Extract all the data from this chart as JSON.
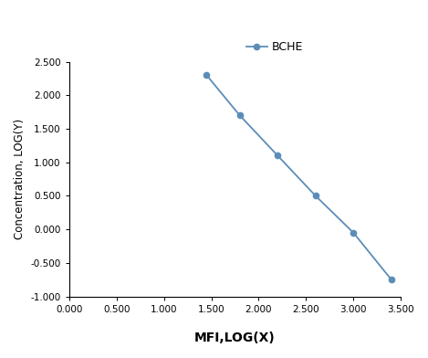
{
  "x": [
    1.45,
    1.8,
    2.2,
    2.6,
    3.0,
    3.4
  ],
  "y": [
    2.3,
    1.7,
    1.1,
    0.5,
    -0.05,
    -0.75
  ],
  "line_color": "#5B8DB8",
  "marker": "o",
  "markersize": 4.5,
  "linewidth": 1.3,
  "legend_label": "BCHE",
  "xlabel": "MFI,LOG(X)",
  "ylabel": "Concentration, LOG(Y)",
  "xlim": [
    0.0,
    3.5
  ],
  "ylim": [
    -1.0,
    2.5
  ],
  "xticks": [
    0.0,
    0.5,
    1.0,
    1.5,
    2.0,
    2.5,
    3.0,
    3.5
  ],
  "yticks": [
    -1.0,
    -0.5,
    0.0,
    0.5,
    1.0,
    1.5,
    2.0,
    2.5
  ],
  "tick_label_fontsize": 7.5,
  "axis_label_fontsize": 10,
  "legend_fontsize": 9,
  "background_color": "#ffffff"
}
